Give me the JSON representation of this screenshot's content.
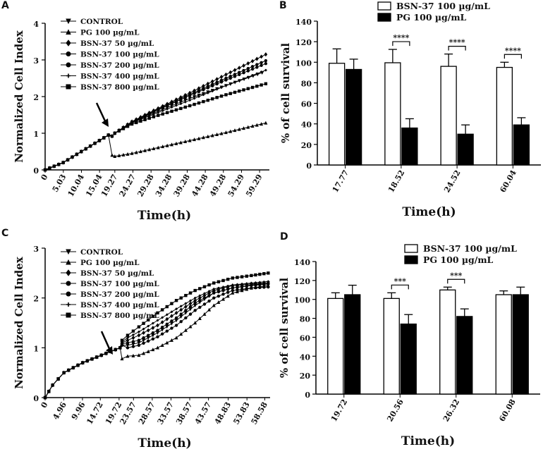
{
  "chart_data": [
    {
      "panel": "A",
      "type": "line",
      "xlabel": "Time(h)",
      "ylabel": "Normalized Cell Index",
      "xlim": [
        0,
        62
      ],
      "ylim": [
        0,
        4
      ],
      "x_ticks": [
        "0",
        "5.03",
        "10.04",
        "15.04",
        "19.27",
        "24.27",
        "29.28",
        "34.28",
        "39.28",
        "44.28",
        "49.28",
        "54.29",
        "59.29"
      ],
      "x_tick_values": [
        0,
        5.03,
        10.04,
        15.04,
        19.27,
        24.27,
        29.28,
        34.28,
        39.28,
        44.28,
        49.28,
        54.29,
        59.29
      ],
      "y_ticks": [
        "0",
        "1",
        "2",
        "3",
        "4"
      ],
      "annotation": "arrow at compound addition",
      "series": [
        {
          "name": "CONTROL",
          "marker": "tri-down",
          "x": [
            0,
            5,
            10,
            15,
            17.5,
            18.5,
            19.27,
            24,
            30,
            40,
            50,
            60
          ],
          "y": [
            0,
            0.2,
            0.5,
            0.8,
            0.95,
            0.92,
            1.0,
            1.3,
            1.55,
            1.95,
            2.3,
            2.65
          ]
        },
        {
          "name": "PG 100 µg/mL",
          "marker": "tri-up",
          "x": [
            0,
            5,
            10,
            15,
            17.5,
            18.5,
            19.27,
            24,
            30,
            40,
            50,
            61
          ],
          "y": [
            0,
            0.2,
            0.5,
            0.8,
            0.95,
            0.4,
            0.37,
            0.45,
            0.58,
            0.8,
            1.02,
            1.28
          ]
        },
        {
          "name": "BSN-37 50 µg/mL",
          "marker": "diamond",
          "x": [
            0,
            5,
            10,
            15,
            17.5,
            18.5,
            19.27,
            24,
            30,
            40,
            50,
            61
          ],
          "y": [
            0,
            0.2,
            0.5,
            0.8,
            0.95,
            0.92,
            1.0,
            1.32,
            1.62,
            2.1,
            2.6,
            3.15
          ]
        },
        {
          "name": "BSN-37 100 µg/mL",
          "marker": "circle",
          "x": [
            0,
            5,
            10,
            15,
            17.5,
            18.5,
            19.27,
            24,
            30,
            40,
            50,
            61
          ],
          "y": [
            0,
            0.2,
            0.5,
            0.8,
            0.95,
            0.92,
            1.0,
            1.3,
            1.58,
            2.03,
            2.45,
            2.9
          ]
        },
        {
          "name": "BSN-37 200 µg/mL",
          "marker": "circle",
          "x": [
            0,
            5,
            10,
            15,
            17.5,
            18.5,
            19.27,
            24,
            30,
            40,
            50,
            61
          ],
          "y": [
            0,
            0.2,
            0.5,
            0.8,
            0.95,
            0.92,
            1.0,
            1.31,
            1.6,
            2.06,
            2.5,
            2.98
          ]
        },
        {
          "name": "BSN-37 400 µg/mL",
          "marker": "plus",
          "x": [
            0,
            5,
            10,
            15,
            17.5,
            18.5,
            19.27,
            24,
            30,
            40,
            50,
            61
          ],
          "y": [
            0,
            0.2,
            0.5,
            0.8,
            0.95,
            0.92,
            1.0,
            1.28,
            1.52,
            1.9,
            2.3,
            2.72
          ]
        },
        {
          "name": "BSN-37 800 µg/mL",
          "marker": "square",
          "x": [
            0,
            5,
            10,
            15,
            17.5,
            18.5,
            19.27,
            24,
            30,
            40,
            50,
            61
          ],
          "y": [
            0,
            0.2,
            0.5,
            0.8,
            0.95,
            0.92,
            1.0,
            1.25,
            1.45,
            1.75,
            2.05,
            2.35
          ]
        }
      ]
    },
    {
      "panel": "B",
      "type": "bar",
      "xlabel": "Time(h)",
      "ylabel": "% of cell survival",
      "ylim": [
        0,
        140
      ],
      "y_ticks": [
        "0",
        "20",
        "40",
        "60",
        "80",
        "100",
        "120",
        "140"
      ],
      "categories": [
        "17.77",
        "18.52",
        "24.52",
        "60.04"
      ],
      "series": [
        {
          "name": "BSN-37 100 µg/mL",
          "fill": "#ffffff",
          "values": [
            99,
            99.5,
            96,
            95
          ],
          "errors": [
            14,
            13,
            12,
            5
          ]
        },
        {
          "name": "PG 100 µg/mL",
          "fill": "#000000",
          "values": [
            93,
            36,
            30,
            39
          ],
          "errors": [
            10,
            9,
            9,
            7
          ]
        }
      ],
      "significance": [
        {
          "category": "18.52",
          "label": "****"
        },
        {
          "category": "24.52",
          "label": "****"
        },
        {
          "category": "60.04",
          "label": "****"
        }
      ]
    },
    {
      "panel": "C",
      "type": "line",
      "xlabel": "Time(h)",
      "ylabel": "Normalized Cell Index",
      "xlim": [
        0,
        60
      ],
      "ylim": [
        0,
        3
      ],
      "x_ticks": [
        "0",
        "4.96",
        "9.96",
        "14.72",
        "19.72",
        "23.57",
        "28.57",
        "33.57",
        "38.57",
        "43.57",
        "48.83",
        "53.83",
        "58.58"
      ],
      "x_tick_values": [
        0,
        4.96,
        9.96,
        14.72,
        19.72,
        23.57,
        28.57,
        33.57,
        38.57,
        43.57,
        48.83,
        53.83,
        58.58
      ],
      "y_ticks": [
        "0",
        "1",
        "2",
        "3"
      ],
      "annotation": "arrow at compound addition",
      "series": [
        {
          "name": "CONTROL",
          "marker": "tri-down",
          "x": [
            0,
            2,
            5,
            10,
            15,
            20,
            20.5,
            22,
            25,
            30,
            35,
            40,
            45,
            50,
            55,
            59.5
          ],
          "y": [
            0,
            0.25,
            0.5,
            0.7,
            0.85,
            1.0,
            1.05,
            1.05,
            1.1,
            1.3,
            1.55,
            1.85,
            2.1,
            2.2,
            2.26,
            2.3
          ]
        },
        {
          "name": "PG 100 µg/mL",
          "marker": "tri-up",
          "x": [
            0,
            2,
            5,
            10,
            15,
            20,
            20.5,
            22,
            25,
            30,
            35,
            40,
            45,
            50,
            55,
            59.5
          ],
          "y": [
            0,
            0.25,
            0.5,
            0.7,
            0.85,
            1.0,
            0.78,
            0.83,
            0.85,
            1.0,
            1.2,
            1.5,
            1.85,
            2.1,
            2.2,
            2.25
          ]
        },
        {
          "name": "BSN-37 50 µg/mL",
          "marker": "diamond",
          "x": [
            0,
            2,
            5,
            10,
            15,
            20,
            20.5,
            22,
            25,
            30,
            35,
            40,
            45,
            50,
            55,
            59.5
          ],
          "y": [
            0,
            0.25,
            0.5,
            0.7,
            0.85,
            1.0,
            1.1,
            1.15,
            1.25,
            1.45,
            1.7,
            1.95,
            2.15,
            2.25,
            2.28,
            2.3
          ]
        },
        {
          "name": "BSN-37 100 µg/mL",
          "marker": "circle",
          "x": [
            0,
            2,
            5,
            10,
            15,
            20,
            20.5,
            22,
            25,
            30,
            35,
            40,
            45,
            50,
            55,
            59.5
          ],
          "y": [
            0,
            0.25,
            0.5,
            0.7,
            0.85,
            1.0,
            1.08,
            1.1,
            1.15,
            1.35,
            1.6,
            1.9,
            2.1,
            2.2,
            2.25,
            2.28
          ]
        },
        {
          "name": "BSN-37 200 µg/mL",
          "marker": "circle",
          "x": [
            0,
            2,
            5,
            10,
            15,
            20,
            20.5,
            22,
            25,
            30,
            35,
            40,
            45,
            50,
            55,
            59.5
          ],
          "y": [
            0,
            0.25,
            0.5,
            0.7,
            0.85,
            1.0,
            1.05,
            1.0,
            1.05,
            1.22,
            1.45,
            1.75,
            2.0,
            2.15,
            2.2,
            2.22
          ]
        },
        {
          "name": "BSN-37 400 µg/mL",
          "marker": "plus",
          "x": [
            0,
            2,
            5,
            10,
            15,
            20,
            20.5,
            22,
            25,
            30,
            35,
            40,
            45,
            50,
            55,
            59.5
          ],
          "y": [
            0,
            0.25,
            0.5,
            0.7,
            0.85,
            1.0,
            1.12,
            1.2,
            1.32,
            1.55,
            1.78,
            2.0,
            2.18,
            2.26,
            2.3,
            2.33
          ]
        },
        {
          "name": "BSN-37 800 µg/mL",
          "marker": "square",
          "x": [
            0,
            2,
            5,
            10,
            15,
            20,
            20.5,
            22,
            25,
            30,
            35,
            40,
            45,
            50,
            55,
            59.5
          ],
          "y": [
            0,
            0.25,
            0.5,
            0.7,
            0.85,
            1.0,
            1.15,
            1.25,
            1.42,
            1.7,
            1.95,
            2.15,
            2.3,
            2.4,
            2.45,
            2.5
          ]
        }
      ]
    },
    {
      "panel": "D",
      "type": "bar",
      "xlabel": "Time(h)",
      "ylabel": "% of cell survival",
      "ylim": [
        0,
        140
      ],
      "y_ticks": [
        "0",
        "20",
        "40",
        "60",
        "80",
        "100",
        "120",
        "140"
      ],
      "categories": [
        "19.72",
        "20.56",
        "26.32",
        "60.08"
      ],
      "series": [
        {
          "name": "BSN-37 100 µg/mL",
          "fill": "#ffffff",
          "values": [
            101,
            101,
            110,
            105
          ],
          "errors": [
            6,
            6,
            3,
            4
          ]
        },
        {
          "name": "PG 100 µg/mL",
          "fill": "#000000",
          "values": [
            105,
            74,
            82,
            105
          ],
          "errors": [
            10,
            10,
            8,
            8
          ]
        }
      ],
      "significance": [
        {
          "category": "20.56",
          "label": "***"
        },
        {
          "category": "26.32",
          "label": "***"
        }
      ]
    }
  ]
}
